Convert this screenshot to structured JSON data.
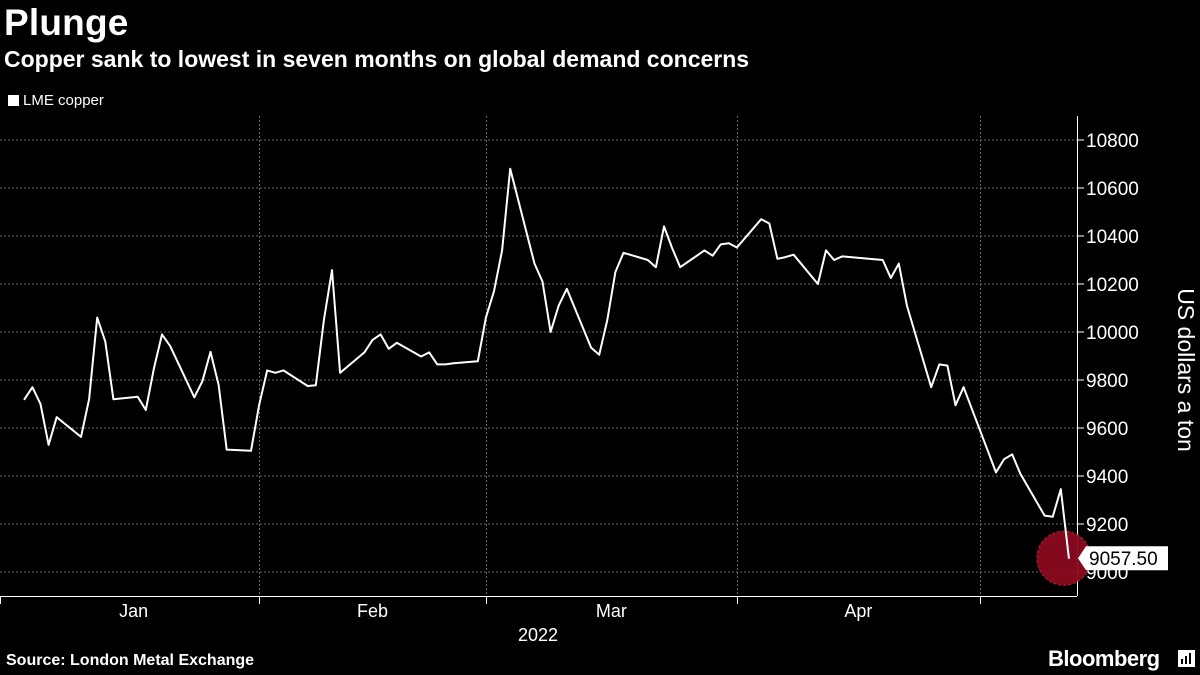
{
  "title": "Plunge",
  "subtitle": "Copper sank to lowest in seven months on global demand concerns",
  "footer": {
    "source": "Source: London Metal Exchange",
    "brand": "Bloomberg"
  },
  "colors": {
    "background": "#000000",
    "line": "#ffffff",
    "highlight": "#8b0a1e"
  },
  "chart_data": {
    "type": "line",
    "title": "Plunge",
    "subtitle": "Copper sank to lowest in seven months on global demand concerns",
    "xlabel": "2022",
    "ylabel": "US dollars a ton",
    "ylim": [
      8900,
      10900
    ],
    "yticks": [
      9000,
      9200,
      9400,
      9600,
      9800,
      10000,
      10200,
      10400,
      10600,
      10800
    ],
    "month_labels": [
      "Jan",
      "Feb",
      "Mar",
      "Apr"
    ],
    "year_label": "2022",
    "grid": true,
    "legend_position": "top-left",
    "last_value_label": "9057.50",
    "series": [
      {
        "name": "LME copper",
        "x": [
          "2022-01-03",
          "2022-01-04",
          "2022-01-05",
          "2022-01-06",
          "2022-01-07",
          "2022-01-10",
          "2022-01-11",
          "2022-01-12",
          "2022-01-13",
          "2022-01-14",
          "2022-01-17",
          "2022-01-18",
          "2022-01-19",
          "2022-01-20",
          "2022-01-21",
          "2022-01-24",
          "2022-01-25",
          "2022-01-26",
          "2022-01-27",
          "2022-01-28",
          "2022-01-31",
          "2022-02-01",
          "2022-02-02",
          "2022-02-03",
          "2022-02-04",
          "2022-02-07",
          "2022-02-08",
          "2022-02-09",
          "2022-02-10",
          "2022-02-11",
          "2022-02-14",
          "2022-02-15",
          "2022-02-16",
          "2022-02-17",
          "2022-02-18",
          "2022-02-21",
          "2022-02-22",
          "2022-02-23",
          "2022-02-24",
          "2022-02-25",
          "2022-02-28",
          "2022-03-01",
          "2022-03-02",
          "2022-03-03",
          "2022-03-04",
          "2022-03-07",
          "2022-03-08",
          "2022-03-09",
          "2022-03-10",
          "2022-03-11",
          "2022-03-14",
          "2022-03-15",
          "2022-03-16",
          "2022-03-17",
          "2022-03-18",
          "2022-03-21",
          "2022-03-22",
          "2022-03-23",
          "2022-03-24",
          "2022-03-25",
          "2022-03-28",
          "2022-03-29",
          "2022-03-30",
          "2022-03-31",
          "2022-04-01",
          "2022-04-04",
          "2022-04-05",
          "2022-04-06",
          "2022-04-07",
          "2022-04-08",
          "2022-04-11",
          "2022-04-12",
          "2022-04-13",
          "2022-04-14",
          "2022-04-19",
          "2022-04-20",
          "2022-04-21",
          "2022-04-22",
          "2022-04-25",
          "2022-04-26",
          "2022-04-27",
          "2022-04-28",
          "2022-04-29",
          "2022-05-03",
          "2022-05-04",
          "2022-05-05",
          "2022-05-06",
          "2022-05-09",
          "2022-05-10",
          "2022-05-11",
          "2022-05-12"
        ],
        "values": [
          9719,
          9770,
          9700,
          9530,
          9645,
          9563,
          9720,
          10060,
          9960,
          9720,
          9730,
          9675,
          9848,
          9990,
          9942,
          9728,
          9795,
          9917,
          9780,
          9510,
          9505,
          9695,
          9840,
          9830,
          9840,
          9775,
          9778,
          10050,
          10258,
          9830,
          9915,
          9967,
          9990,
          9930,
          9955,
          9898,
          9915,
          9865,
          9865,
          9870,
          9878,
          10060,
          10170,
          10340,
          10680,
          10285,
          10210,
          10000,
          10110,
          10180,
          9935,
          9905,
          10050,
          10250,
          10330,
          10300,
          10270,
          10440,
          10350,
          10270,
          10340,
          10318,
          10365,
          10370,
          10352,
          10470,
          10452,
          10305,
          10312,
          10322,
          10200,
          10340,
          10300,
          10315,
          10300,
          10225,
          10285,
          10110,
          9770,
          9865,
          9860,
          9695,
          9770,
          9415,
          9470,
          9490,
          9410,
          9235,
          9230,
          9345,
          9057.5
        ]
      }
    ]
  }
}
